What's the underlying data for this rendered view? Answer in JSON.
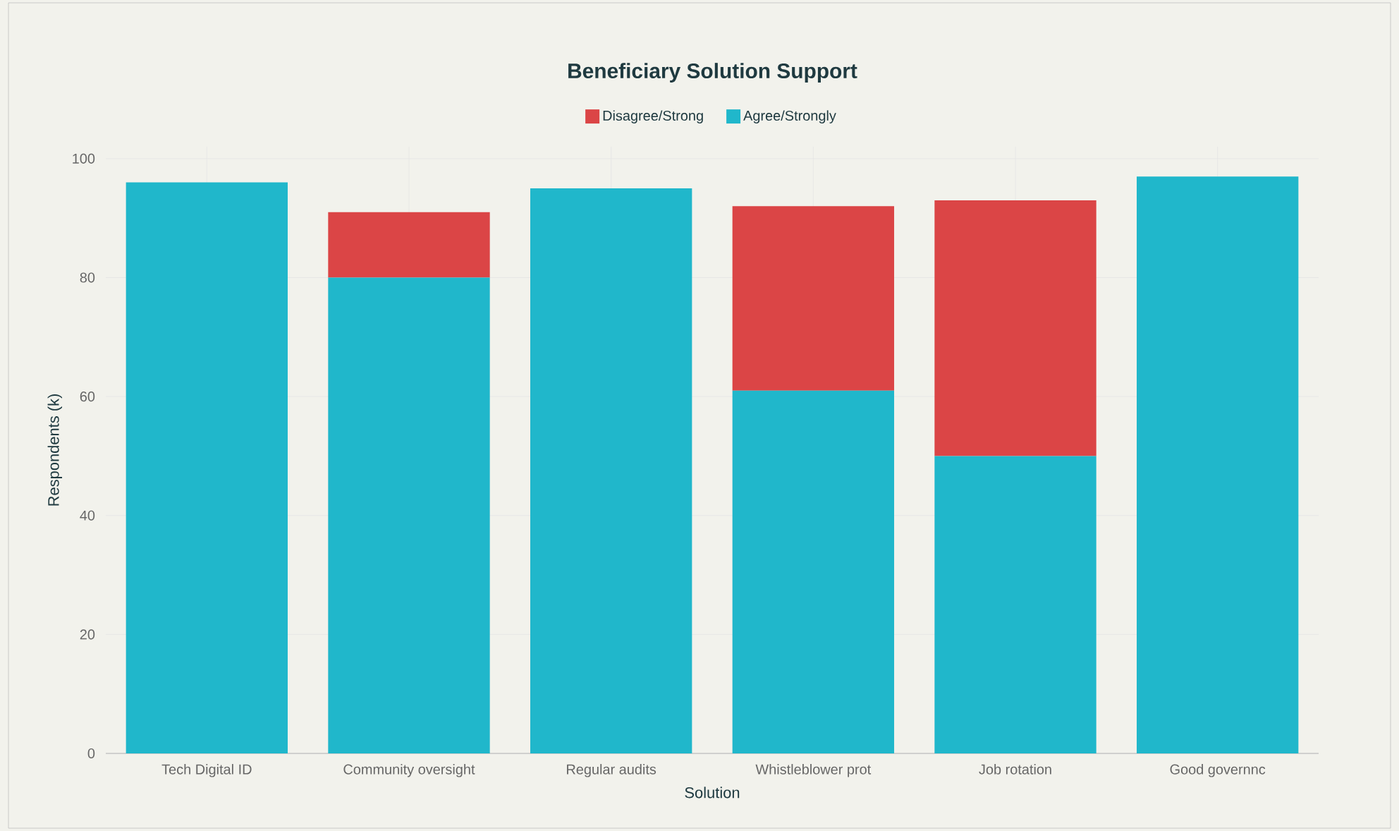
{
  "chart_data": {
    "type": "bar",
    "title": "Beneficiary Solution Support",
    "xlabel": "Solution",
    "ylabel": "Respondents (k)",
    "categories": [
      "Tech Digital ID",
      "Community oversight",
      "Regular audits",
      "Whistleblower prot",
      "Job rotation",
      "Good governnc"
    ],
    "series": [
      {
        "name": "Agree/Strongly",
        "color": "#20b7cb",
        "values": [
          96,
          80,
          95,
          61,
          50,
          97
        ]
      },
      {
        "name": "Disagree/Strong",
        "color": "#db4546",
        "values": [
          0,
          11,
          0,
          31,
          43,
          0
        ]
      }
    ],
    "stacked": true,
    "ylim": [
      0,
      102
    ],
    "yticks": [
      0,
      20,
      40,
      60,
      80,
      100
    ],
    "grid": true,
    "legend": "top"
  }
}
